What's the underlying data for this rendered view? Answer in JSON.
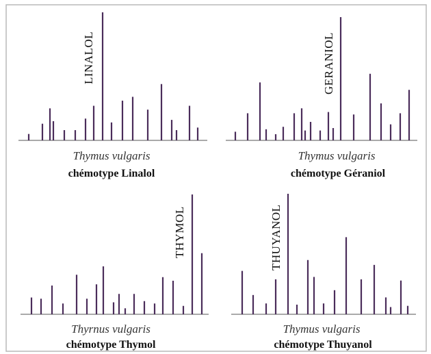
{
  "chart_data": [
    {
      "type": "bar",
      "marker": "LINALOL",
      "species": "Thymus vulgaris",
      "chemotype": "chémotype Linalol",
      "ylim": [
        0,
        100
      ],
      "peaks": [
        {
          "x": 42,
          "y": 5
        },
        {
          "x": 62,
          "y": 13
        },
        {
          "x": 73,
          "y": 25
        },
        {
          "x": 78,
          "y": 15
        },
        {
          "x": 94,
          "y": 8
        },
        {
          "x": 110,
          "y": 8
        },
        {
          "x": 125,
          "y": 17
        },
        {
          "x": 137,
          "y": 27
        },
        {
          "x": 150,
          "y": 100
        },
        {
          "x": 163,
          "y": 14
        },
        {
          "x": 179,
          "y": 31
        },
        {
          "x": 194,
          "y": 34
        },
        {
          "x": 216,
          "y": 24
        },
        {
          "x": 236,
          "y": 44
        },
        {
          "x": 251,
          "y": 16
        },
        {
          "x": 258,
          "y": 8
        },
        {
          "x": 277,
          "y": 27
        },
        {
          "x": 289,
          "y": 10
        }
      ]
    },
    {
      "type": "bar",
      "marker": "GERANIOL",
      "species": "Thymus vulgaris",
      "chemotype": "chémotype Géraniol",
      "ylim": [
        0,
        100
      ],
      "peaks": [
        {
          "x": 344,
          "y": 7
        },
        {
          "x": 362,
          "y": 22
        },
        {
          "x": 380,
          "y": 47
        },
        {
          "x": 389,
          "y": 9
        },
        {
          "x": 403,
          "y": 5
        },
        {
          "x": 414,
          "y": 11
        },
        {
          "x": 430,
          "y": 22
        },
        {
          "x": 441,
          "y": 26
        },
        {
          "x": 446,
          "y": 8
        },
        {
          "x": 454,
          "y": 15
        },
        {
          "x": 468,
          "y": 8
        },
        {
          "x": 480,
          "y": 23
        },
        {
          "x": 487,
          "y": 10
        },
        {
          "x": 498,
          "y": 100
        },
        {
          "x": 517,
          "y": 21
        },
        {
          "x": 541,
          "y": 54
        },
        {
          "x": 557,
          "y": 30
        },
        {
          "x": 571,
          "y": 13
        },
        {
          "x": 585,
          "y": 22
        },
        {
          "x": 598,
          "y": 41
        }
      ]
    },
    {
      "type": "bar",
      "marker": "THYMOL",
      "species": "Thyrnus vulgaris",
      "chemotype": "chémotype Thymol",
      "ylim": [
        0,
        100
      ],
      "peaks": [
        {
          "x": 46,
          "y": 14
        },
        {
          "x": 60,
          "y": 13
        },
        {
          "x": 76,
          "y": 24
        },
        {
          "x": 92,
          "y": 9
        },
        {
          "x": 112,
          "y": 33
        },
        {
          "x": 127,
          "y": 13
        },
        {
          "x": 141,
          "y": 25
        },
        {
          "x": 151,
          "y": 40
        },
        {
          "x": 166,
          "y": 10
        },
        {
          "x": 174,
          "y": 17
        },
        {
          "x": 183,
          "y": 5
        },
        {
          "x": 196,
          "y": 17
        },
        {
          "x": 211,
          "y": 11
        },
        {
          "x": 226,
          "y": 9
        },
        {
          "x": 238,
          "y": 31
        },
        {
          "x": 253,
          "y": 28
        },
        {
          "x": 268,
          "y": 7
        },
        {
          "x": 281,
          "y": 100
        },
        {
          "x": 295,
          "y": 51
        }
      ]
    },
    {
      "type": "bar",
      "marker": "THUYANOL",
      "species": "Thymus vulgaris",
      "chemotype": "chémotype Thuyanol",
      "ylim": [
        0,
        100
      ],
      "peaks": [
        {
          "x": 354,
          "y": 36
        },
        {
          "x": 370,
          "y": 16
        },
        {
          "x": 389,
          "y": 9
        },
        {
          "x": 403,
          "y": 29
        },
        {
          "x": 421,
          "y": 100
        },
        {
          "x": 434,
          "y": 8
        },
        {
          "x": 450,
          "y": 45
        },
        {
          "x": 459,
          "y": 31
        },
        {
          "x": 473,
          "y": 9
        },
        {
          "x": 489,
          "y": 20
        },
        {
          "x": 506,
          "y": 64
        },
        {
          "x": 528,
          "y": 29
        },
        {
          "x": 547,
          "y": 41
        },
        {
          "x": 564,
          "y": 14
        },
        {
          "x": 571,
          "y": 6
        },
        {
          "x": 586,
          "y": 28
        },
        {
          "x": 596,
          "y": 7
        }
      ]
    }
  ]
}
